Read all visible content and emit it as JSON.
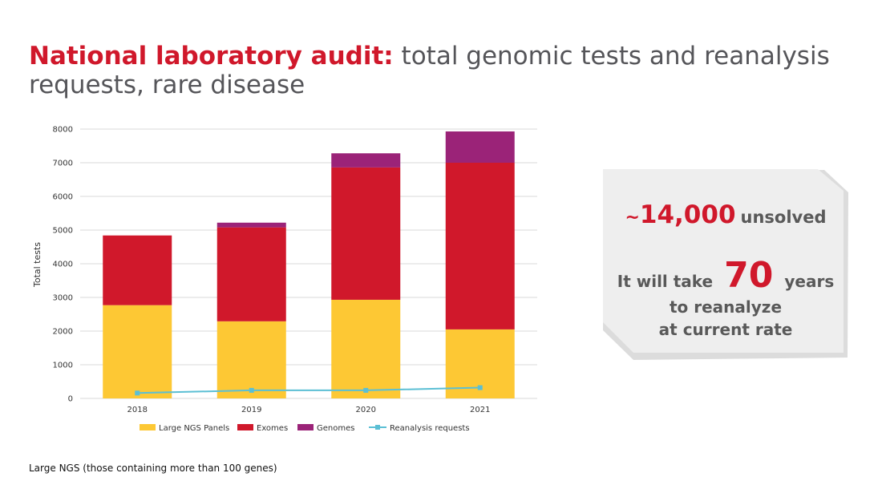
{
  "slide": {
    "title_accent": "National laboratory audit:",
    "title_rest": " total genomic tests and reanalysis requests, rare disease",
    "footnote": "Large NGS (those containing more than 100 genes)"
  },
  "callout": {
    "prefix": "~",
    "count": "14,000",
    "count_suffix": "unsolved",
    "line1_before": "It will take",
    "years": "70",
    "line1_after": "years",
    "line2": "to reanalyze",
    "line3": "at current rate"
  },
  "colors": {
    "panels": "#fdc834",
    "exomes": "#d0182b",
    "genomes": "#9b2378",
    "reanalysis": "#5bbfd4",
    "grid": "#d9d9d9",
    "callout_bg": "#eeeeee"
  },
  "chart_data": {
    "type": "bar",
    "stacked": true,
    "categories": [
      "2018",
      "2019",
      "2020",
      "2021"
    ],
    "series": [
      {
        "name": "Large NGS Panels",
        "type": "bar",
        "values": [
          2770,
          2290,
          2930,
          2050
        ]
      },
      {
        "name": "Exomes",
        "type": "bar",
        "values": [
          2070,
          2790,
          3930,
          4950
        ]
      },
      {
        "name": "Genomes",
        "type": "bar",
        "values": [
          0,
          140,
          420,
          930
        ]
      },
      {
        "name": "Reanalysis requests",
        "type": "line",
        "values": [
          160,
          240,
          240,
          320
        ]
      }
    ],
    "ylabel": "Total tests",
    "ylim": [
      0,
      8000
    ],
    "yticks": [
      0,
      1000,
      2000,
      3000,
      4000,
      5000,
      6000,
      7000,
      8000
    ],
    "grid": true,
    "legend": "bottom"
  }
}
